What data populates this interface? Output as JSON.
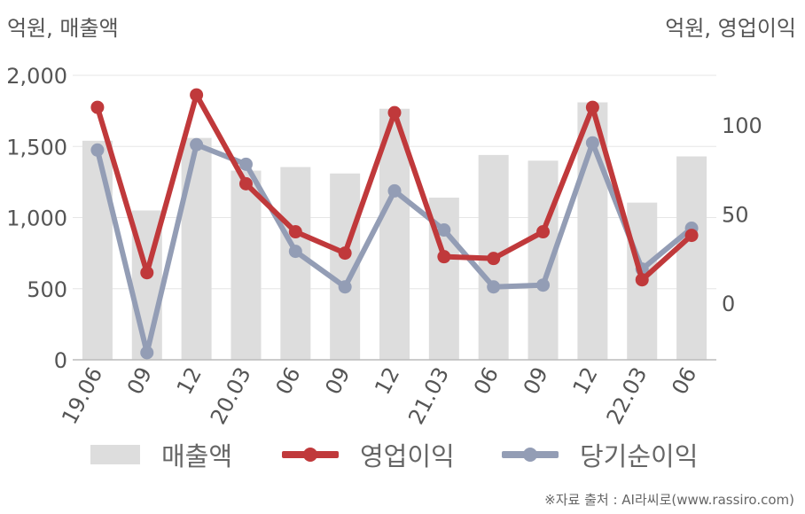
{
  "header": {
    "left_unit": "억원, 매출액",
    "right_unit": "억원, 영업이익"
  },
  "source": "※자료 출처 : AI라씨로(www.rassiro.com)",
  "colors": {
    "bar": "#dddddd",
    "operating_profit": "#c0393b",
    "net_income": "#939db5",
    "axis_text": "#555555"
  },
  "legend": [
    {
      "name": "매출액",
      "kind": "bar",
      "color": "#dddddd"
    },
    {
      "name": "영업이익",
      "kind": "line",
      "color": "#c0393b"
    },
    {
      "name": "당기순이익",
      "kind": "line",
      "color": "#939db5"
    }
  ],
  "chart_data": {
    "type": "bar",
    "categories": [
      "19.06",
      "09",
      "12",
      "20.03",
      "06",
      "09",
      "12",
      "21.03",
      "06",
      "09",
      "12",
      "22.03",
      "06"
    ],
    "y_left": {
      "label": "억원, 매출액",
      "ylim": [
        0,
        2000
      ],
      "ticks": [
        0,
        500,
        1000,
        1500,
        2000
      ],
      "tick_labels": [
        "0",
        "500",
        "1,000",
        "1,500",
        "2,000"
      ]
    },
    "y_right": {
      "label": "억원, 영업이익",
      "ylim": [
        -32,
        128
      ],
      "ticks": [
        0,
        50,
        100
      ],
      "tick_labels": [
        "0",
        "50",
        "100"
      ]
    },
    "series": [
      {
        "name": "매출액",
        "type": "bar",
        "axis": "left",
        "color": "#dddddd",
        "values": [
          1540,
          1050,
          1560,
          1330,
          1355,
          1310,
          1765,
          1140,
          1440,
          1400,
          1810,
          1105,
          1430
        ]
      },
      {
        "name": "영업이익",
        "type": "line",
        "axis": "right",
        "color": "#c0393b",
        "values": [
          110,
          17,
          117,
          67,
          40,
          28,
          107,
          26,
          25,
          40,
          110,
          13,
          38
        ]
      },
      {
        "name": "당기순이익",
        "type": "line",
        "axis": "right",
        "color": "#939db5",
        "values": [
          86,
          -28,
          89,
          78,
          29,
          9,
          63,
          41,
          9,
          10,
          90,
          19,
          42
        ]
      }
    ],
    "grid": true,
    "legend_position": "bottom"
  }
}
